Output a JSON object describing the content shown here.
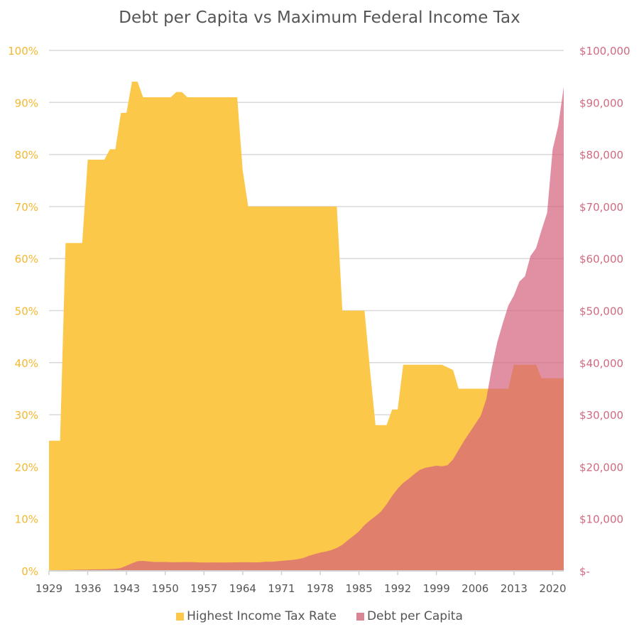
{
  "chart_data": {
    "type": "area",
    "title": "Debt per Capita vs Maximum Federal Income Tax",
    "x_range": [
      1929,
      2022
    ],
    "x_ticks": [
      "1929",
      "1936",
      "1943",
      "1950",
      "1957",
      "1964",
      "1971",
      "1978",
      "1985",
      "1992",
      "1999",
      "2006",
      "2013",
      "2020"
    ],
    "y_left": {
      "range": [
        0,
        100
      ],
      "ticks": [
        "0%",
        "10%",
        "20%",
        "30%",
        "40%",
        "50%",
        "60%",
        "70%",
        "80%",
        "90%",
        "100%"
      ],
      "color": "#F5B82E"
    },
    "y_right": {
      "range": [
        0,
        100000
      ],
      "ticks": [
        "$-",
        "$10,000",
        "$20,000",
        "$30,000",
        "$40,000",
        "$50,000",
        "$60,000",
        "$70,000",
        "$80,000",
        "$90,000",
        "$100,000"
      ],
      "color": "#D06A80"
    },
    "grid": true,
    "legend_position": "bottom",
    "series": [
      {
        "name": "Highest Income Tax Rate",
        "axis": "left",
        "color": "#FCC84A",
        "values": [
          25,
          25,
          25,
          63,
          63,
          63,
          63,
          79,
          79,
          79,
          79,
          81,
          81,
          88,
          88,
          94,
          94,
          91,
          91,
          91,
          91,
          91,
          91,
          92,
          92,
          91,
          91,
          91,
          91,
          91,
          91,
          91,
          91,
          91,
          91,
          77,
          70,
          70,
          70,
          70,
          70,
          70,
          70,
          70,
          70,
          70,
          70,
          70,
          70,
          70,
          70,
          70,
          70,
          50,
          50,
          50,
          50,
          50,
          38.5,
          28,
          28,
          28,
          31,
          31,
          39.6,
          39.6,
          39.6,
          39.6,
          39.6,
          39.6,
          39.6,
          39.6,
          39.1,
          38.6,
          35,
          35,
          35,
          35,
          35,
          35,
          35,
          35,
          35,
          35,
          39.6,
          39.6,
          39.6,
          39.6,
          39.6,
          37,
          37,
          37,
          37,
          37
        ]
      },
      {
        "name": "Debt per Capita",
        "axis": "right",
        "color": "#D45F7A",
        "values": [
          140,
          130,
          135,
          155,
          180,
          215,
          225,
          250,
          280,
          285,
          310,
          325,
          370,
          540,
          1000,
          1450,
          1850,
          1910,
          1800,
          1700,
          1700,
          1700,
          1650,
          1650,
          1680,
          1690,
          1660,
          1620,
          1590,
          1600,
          1630,
          1610,
          1600,
          1630,
          1640,
          1650,
          1650,
          1630,
          1640,
          1730,
          1750,
          1800,
          1910,
          2000,
          2100,
          2250,
          2500,
          2900,
          3200,
          3500,
          3700,
          4000,
          4400,
          5000,
          5900,
          6700,
          7600,
          8800,
          9700,
          10500,
          11400,
          12800,
          14400,
          15800,
          16900,
          17700,
          18600,
          19400,
          19800,
          20000,
          20200,
          20100,
          20300,
          21400,
          23200,
          25000,
          26600,
          28200,
          29800,
          33000,
          39000,
          44000,
          47600,
          51000,
          52900,
          55600,
          56600,
          60500,
          62000,
          65500,
          68800,
          81000,
          85500,
          93000
        ]
      }
    ]
  }
}
